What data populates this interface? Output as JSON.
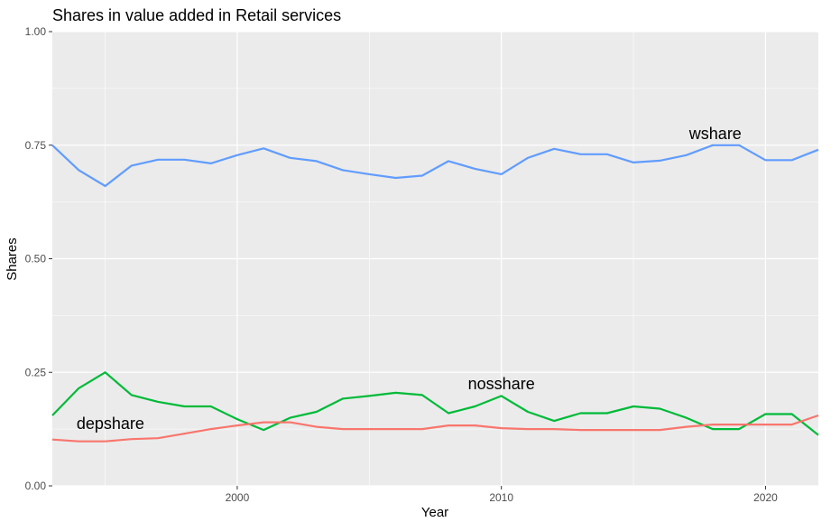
{
  "chart_data": {
    "type": "line",
    "title": "Shares in value added in Retail services",
    "xlabel": "Year",
    "ylabel": "Shares",
    "xlim": [
      1993,
      2022
    ],
    "ylim": [
      0,
      1
    ],
    "x_ticks": [
      2000,
      2010,
      2020
    ],
    "x_tick_labels": [
      "2000",
      "2010",
      "2020"
    ],
    "y_ticks": [
      0,
      0.25,
      0.5,
      0.75,
      1
    ],
    "y_tick_labels": [
      "0.00",
      "0.25",
      "0.50",
      "0.75",
      "1.00"
    ],
    "grid": true,
    "legend": "none",
    "x": [
      1993,
      1994,
      1995,
      1996,
      1997,
      1998,
      1999,
      2000,
      2001,
      2002,
      2003,
      2004,
      2005,
      2006,
      2007,
      2008,
      2009,
      2010,
      2011,
      2012,
      2013,
      2014,
      2015,
      2016,
      2017,
      2018,
      2019,
      2020,
      2021,
      2022
    ],
    "series": [
      {
        "name": "wshare",
        "color": "#619cff",
        "values": [
          0.75,
          0.695,
          0.66,
          0.705,
          0.718,
          0.718,
          0.71,
          0.728,
          0.743,
          0.722,
          0.715,
          0.695,
          0.686,
          0.678,
          0.683,
          0.715,
          0.698,
          0.686,
          0.722,
          0.742,
          0.73,
          0.73,
          0.712,
          0.716,
          0.728,
          0.75,
          0.75,
          0.717,
          0.717,
          0.74
        ]
      },
      {
        "name": "nosshare",
        "color": "#00ba38",
        "values": [
          0.155,
          0.215,
          0.25,
          0.2,
          0.185,
          0.175,
          0.175,
          0.147,
          0.123,
          0.15,
          0.163,
          0.192,
          0.198,
          0.205,
          0.2,
          0.16,
          0.175,
          0.198,
          0.163,
          0.143,
          0.16,
          0.16,
          0.175,
          0.17,
          0.15,
          0.125,
          0.125,
          0.158,
          0.158,
          0.112
        ]
      },
      {
        "name": "depshare",
        "color": "#f8766d",
        "values": [
          0.102,
          0.098,
          0.098,
          0.103,
          0.105,
          0.115,
          0.125,
          0.133,
          0.14,
          0.14,
          0.13,
          0.125,
          0.125,
          0.125,
          0.125,
          0.133,
          0.133,
          0.127,
          0.125,
          0.125,
          0.123,
          0.123,
          0.123,
          0.123,
          0.13,
          0.135,
          0.135,
          0.135,
          0.135,
          0.155
        ]
      }
    ],
    "annotations": [
      {
        "text": "wshare",
        "x": 2018.1,
        "y": 0.775
      },
      {
        "text": "nosshare",
        "x": 2010,
        "y": 0.225
      },
      {
        "text": "depshare",
        "x": 1995.2,
        "y": 0.137
      }
    ]
  }
}
